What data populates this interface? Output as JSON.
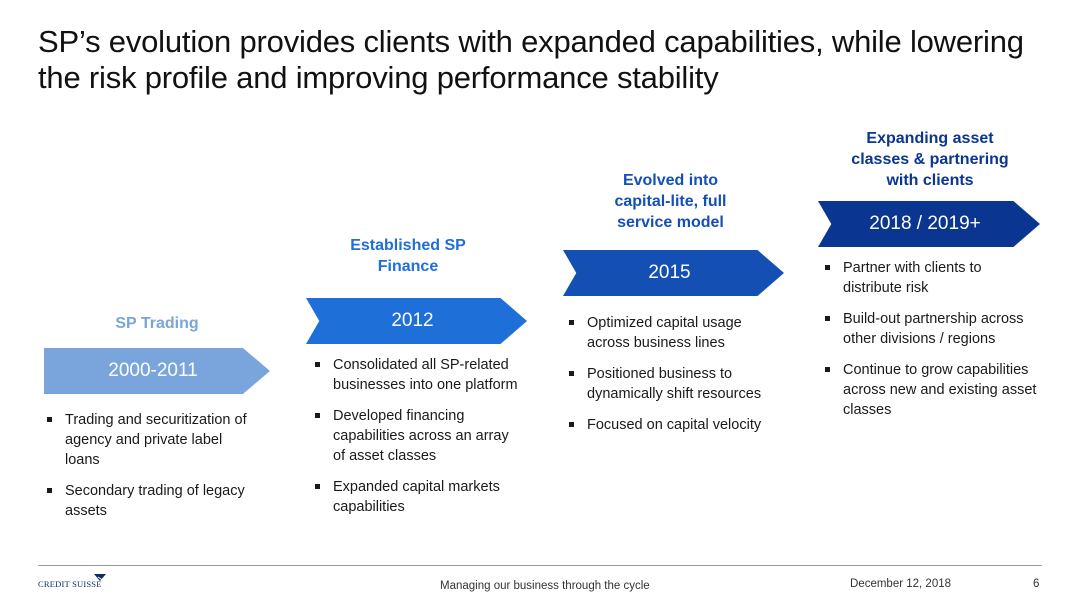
{
  "title": "SP’s evolution provides clients with expanded capabilities, while lowering the risk profile and improving performance stability",
  "colors": {
    "stage1": "#7aa5dc",
    "stage2": "#1f6fd9",
    "stage3": "#1450b4",
    "stage4": "#0a3590"
  },
  "stages": [
    {
      "heading": "SP Trading",
      "period": "2000-2011",
      "bullets": [
        "Trading and securitization of agency and private label loans",
        "Secondary trading of legacy assets"
      ]
    },
    {
      "heading": "Established SP Finance",
      "period": "2012",
      "bullets": [
        "Consolidated all SP-related businesses into one platform",
        "Developed financing capabilities across an array of asset classes",
        "Expanded capital markets capabilities"
      ]
    },
    {
      "heading": "Evolved into capital-lite, full service model",
      "period": "2015",
      "bullets": [
        "Optimized capital usage across business lines",
        "Positioned business to dynamically shift resources",
        "Focused on capital velocity"
      ]
    },
    {
      "heading": "Expanding asset classes & partnering with clients",
      "period": "2018 / 2019+",
      "bullets": [
        "Partner with clients to distribute risk",
        "Build-out partnership across other divisions / regions",
        "Continue to grow capabilities across new and existing asset classes"
      ]
    }
  ],
  "footer": {
    "logo_text": "CREDIT SUISSE",
    "tagline": "Managing our business through the cycle",
    "date": "December 12, 2018",
    "page": "6"
  }
}
